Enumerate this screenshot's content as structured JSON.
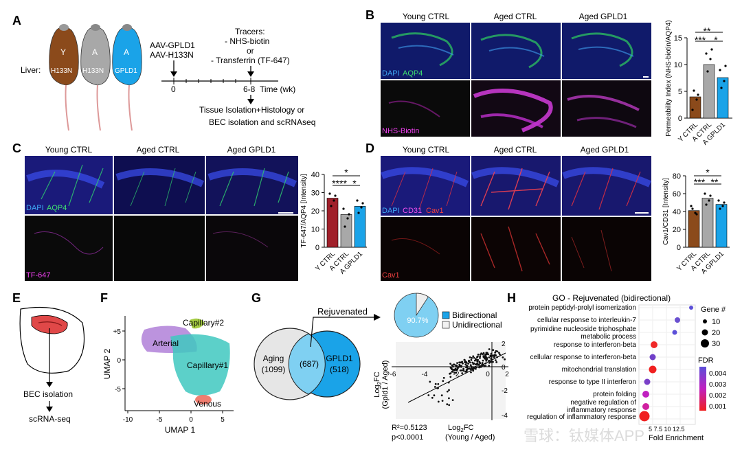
{
  "panels": {
    "A": "A",
    "B": "B",
    "C": "C",
    "D": "D",
    "E": "E",
    "F": "F",
    "G": "G",
    "H": "H"
  },
  "panelA": {
    "mice": [
      "Y",
      "A",
      "A"
    ],
    "liver_label": "Liver:",
    "liver_genes": [
      "H133N",
      "H133N",
      "GPLD1"
    ],
    "mouse_colors": [
      "#8B4A1B",
      "#A8A8A8",
      "#1AA3E8"
    ],
    "aav_lines": [
      "AAV-GPLD1",
      "AAV-H133N"
    ],
    "tracer_lines": [
      "Tracers:",
      "- NHS-biotin",
      "or",
      "- Transferrin (TF-647)"
    ],
    "t0": "0",
    "t1": "6-8",
    "time_label": "Time (wk)",
    "outcome_lines": [
      "Tissue Isolation+Histology or",
      "BEC isolation and scRNAseq"
    ]
  },
  "panelB": {
    "col_titles": [
      "Young CTRL",
      "Aged CTRL",
      "Aged GPLD1"
    ],
    "stain_top_a": "DAPI",
    "stain_top_b": "AQP4",
    "stain_bottom": "NHS-Biotin",
    "chart_data": {
      "type": "bar",
      "categories": [
        "Y CTRL",
        "A CTRL",
        "A GPLD1"
      ],
      "values": [
        4,
        10,
        7.5
      ],
      "errors": [
        0.6,
        0.7,
        0.7
      ],
      "colors": [
        "#8B4A1B",
        "#A8A8A8",
        "#1AA3E8"
      ],
      "ylabel": "Permeability Index (NHS-biotin/AQP4)",
      "ylim": [
        0,
        15
      ],
      "yticks": [
        "0",
        "5",
        "10",
        "15"
      ],
      "sig": [
        "**",
        "***",
        "*"
      ]
    }
  },
  "panelC": {
    "col_titles": [
      "Young CTRL",
      "Aged CTRL",
      "Aged GPLD1"
    ],
    "stain_top_a": "DAPI",
    "stain_top_b": "AQP4",
    "stain_bottom": "TF-647",
    "chart_data": {
      "type": "bar",
      "categories": [
        "Y CTRL",
        "A CTRL",
        "A GPLD1"
      ],
      "values": [
        27,
        18,
        22.5
      ],
      "errors": [
        1.2,
        1.0,
        1.2
      ],
      "colors": [
        "#A0202A",
        "#A8A8A8",
        "#1AA3E8"
      ],
      "ylabel": "TF-647/AQP4 [Intensity]",
      "ylim": [
        0,
        40
      ],
      "yticks": [
        "0",
        "10",
        "20",
        "30",
        "40"
      ],
      "sig": [
        "*",
        "****",
        "*"
      ]
    }
  },
  "panelD": {
    "col_titles": [
      "Young CTRL",
      "Aged CTRL",
      "Aged GPLD1"
    ],
    "stain_top_a": "DAPI",
    "stain_top_b": "CD31",
    "stain_top_c": "Cav1",
    "stain_bottom": "Cav1",
    "chart_data": {
      "type": "bar",
      "categories": [
        "Y CTRL",
        "A CTRL",
        "A GPLD1"
      ],
      "values": [
        41,
        55,
        48
      ],
      "errors": [
        1.5,
        2,
        1.5
      ],
      "colors": [
        "#8B4A1B",
        "#A8A8A8",
        "#1AA3E8"
      ],
      "ylabel": "Cav1/CD31 [Intensity]",
      "ylim": [
        0,
        80
      ],
      "yticks": [
        "0",
        "20",
        "40",
        "60",
        "80"
      ],
      "sig": [
        "*",
        "***",
        "**"
      ]
    }
  },
  "panelE": {
    "step1": "BEC isolation",
    "step2": "scRNA-seq"
  },
  "panelF": {
    "chart_data": {
      "type": "scatter",
      "clusters": [
        "Capillary#2",
        "Arterial",
        "Capillary#1",
        "Venous"
      ],
      "xlabel": "UMAP 1",
      "ylabel": "UMAP 2",
      "xticks": [
        "-10",
        "-5",
        "0",
        "5"
      ],
      "yticks": [
        "+5",
        "0",
        "-5"
      ]
    }
  },
  "panelG": {
    "venn_left_label": "Aging",
    "venn_left_count": "(1099)",
    "venn_mid_count": "(687)",
    "venn_right_label": "GPLD1",
    "venn_right_count": "(518)",
    "rejuvenated": "Rejuvenated",
    "pie_percent": "90.7%",
    "pie_legend": [
      "Bidirectional",
      "Unidirectional"
    ],
    "chart_data": {
      "type": "pie",
      "categories": [
        "Bidirectional",
        "Unidirectional"
      ],
      "values": [
        90.7,
        9.3
      ],
      "colors": [
        "#7FD0F2",
        "#EEEEEE"
      ]
    },
    "scatter": {
      "xticks": [
        "-6",
        "-4",
        "-2",
        "0",
        "2"
      ],
      "yticks": [
        "2",
        "0",
        "-2",
        "-4"
      ],
      "ylabel_main": "Log",
      "ylabel_sub": "2",
      "ylabel_rest": "FC",
      "ylabel_paren": "(Gpld1 / Aged)",
      "xlabel_main": "Log",
      "xlabel_sub": "2",
      "xlabel_rest": "FC",
      "xlabel_paren": "(Young / Aged)",
      "r2": "R²=0.5123",
      "p": "p<0.0001"
    }
  },
  "panelH": {
    "title": "GO - Rejuvenated (bidirectional)",
    "terms": [
      "protein peptidyl-prolyl isomerization",
      "cellular response to interleukin-7",
      "pyrimidine nucleoside triphosphate",
      "metabolic process",
      "response to interferon-beta",
      "cellular response to interferon-beta",
      "mitochondrial translation",
      "response to type II interferon",
      "protein folding",
      "negative regulation of",
      "inflammatory response",
      "regulation of inflammatory response"
    ],
    "xlabel": "Fold Enrichment",
    "xticks": "5 7.5 10 12.5",
    "gene_legend_title": "Gene #",
    "gene_sizes": [
      "10",
      "20",
      "30"
    ],
    "fdr_title": "FDR",
    "fdr_ticks": [
      "0.004",
      "0.003",
      "0.002",
      "0.001"
    ]
  },
  "watermark": "雪球：钛媒体APP"
}
